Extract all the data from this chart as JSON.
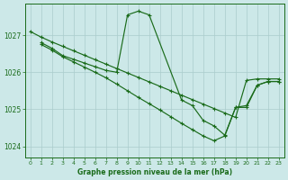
{
  "background_color": "#cce8e8",
  "grid_color": "#aacccc",
  "line_color": "#1a6b1a",
  "xlabel": "Graphe pression niveau de la mer (hPa)",
  "yticks": [
    1024,
    1025,
    1026,
    1027
  ],
  "xticks": [
    0,
    1,
    2,
    3,
    4,
    5,
    6,
    7,
    8,
    9,
    10,
    11,
    12,
    13,
    14,
    15,
    16,
    17,
    18,
    19,
    20,
    21,
    22,
    23
  ],
  "ylim": [
    1023.7,
    1027.85
  ],
  "xlim": [
    -0.5,
    23.5
  ],
  "series1_x": [
    0,
    1,
    2,
    3,
    4,
    5,
    6,
    7,
    8,
    9,
    10,
    11,
    12,
    13,
    14,
    15,
    16,
    17,
    18,
    19,
    20,
    21,
    22,
    23
  ],
  "series1_y": [
    1027.1,
    1026.95,
    1026.82,
    1026.7,
    1026.58,
    1026.46,
    1026.34,
    1026.22,
    1026.1,
    1025.98,
    1025.86,
    1025.74,
    1025.62,
    1025.5,
    1025.38,
    1025.26,
    1025.14,
    1025.02,
    1024.9,
    1024.78,
    1025.78,
    1025.82,
    1025.82,
    1025.82
  ],
  "series2_x": [
    1,
    2,
    3,
    4,
    5,
    6,
    7,
    8,
    9,
    10,
    11,
    14,
    15,
    16,
    17,
    18,
    19,
    20,
    21,
    22,
    23
  ],
  "series2_y": [
    1026.8,
    1026.65,
    1026.45,
    1026.35,
    1026.25,
    1026.15,
    1026.05,
    1026.0,
    1027.55,
    1027.65,
    1027.55,
    1025.25,
    1025.1,
    1024.7,
    1024.55,
    1024.3,
    1025.05,
    1025.1,
    1025.65,
    1025.75,
    1025.75
  ],
  "series3_x": [
    1,
    2,
    3,
    4,
    5,
    6,
    7,
    8,
    9,
    10,
    11,
    12,
    13,
    14,
    15,
    16,
    17,
    18,
    19,
    20,
    21,
    22,
    23
  ],
  "series3_y": [
    1026.75,
    1026.6,
    1026.42,
    1026.28,
    1026.14,
    1026.0,
    1025.85,
    1025.68,
    1025.5,
    1025.32,
    1025.15,
    1024.98,
    1024.8,
    1024.62,
    1024.45,
    1024.28,
    1024.15,
    1024.28,
    1025.05,
    1025.05,
    1025.65,
    1025.75,
    1025.75
  ]
}
